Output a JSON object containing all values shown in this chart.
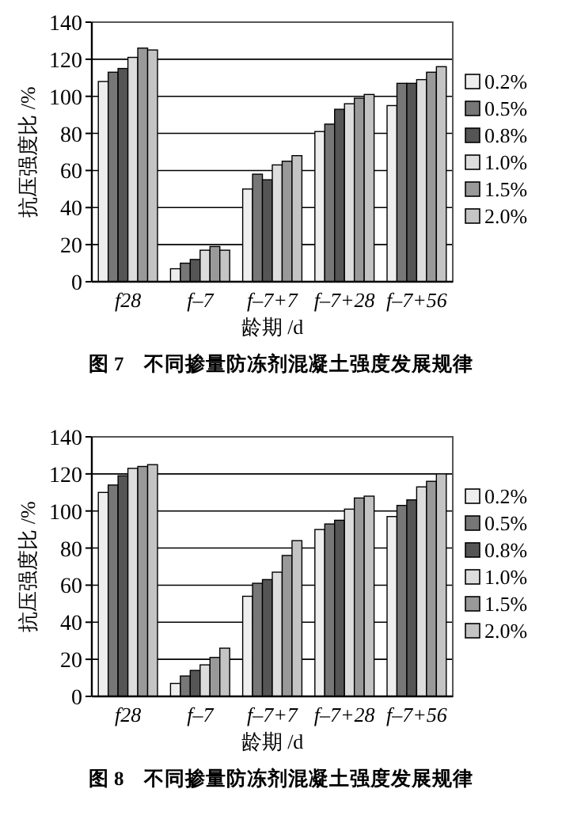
{
  "chart_data": [
    {
      "type": "bar",
      "title": "图 7　不同掺量防冻剂混凝土强度发展规律",
      "xlabel": "龄期 /d",
      "ylabel": "抗压强度比 /%",
      "categories": [
        "f28",
        "f–7",
        "f–7+7",
        "f–7+28",
        "f–7+56"
      ],
      "series": [
        {
          "name": "0.2%",
          "color": "#eeeeee",
          "values": [
            108,
            7,
            50,
            81,
            95
          ]
        },
        {
          "name": "0.5%",
          "color": "#777777",
          "values": [
            113,
            10,
            58,
            85,
            107
          ]
        },
        {
          "name": "0.8%",
          "color": "#555555",
          "values": [
            115,
            12,
            55,
            93,
            107
          ]
        },
        {
          "name": "1.0%",
          "color": "#dddddd",
          "values": [
            121,
            17,
            63,
            96,
            109
          ]
        },
        {
          "name": "1.5%",
          "color": "#999999",
          "values": [
            126,
            19,
            65,
            99,
            113
          ]
        },
        {
          "name": "2.0%",
          "color": "#c4c4c4",
          "values": [
            125,
            17,
            68,
            101,
            116
          ]
        }
      ],
      "ylim": [
        0,
        140
      ],
      "yticks": [
        0,
        20,
        40,
        60,
        80,
        100,
        120,
        140
      ],
      "grid": "y",
      "legend": "right"
    },
    {
      "type": "bar",
      "title": "图 8　不同掺量防冻剂混凝土强度发展规律",
      "xlabel": "龄期 /d",
      "ylabel": "抗压强度比 /%",
      "categories": [
        "f28",
        "f–7",
        "f–7+7",
        "f–7+28",
        "f–7+56"
      ],
      "series": [
        {
          "name": "0.2%",
          "color": "#eeeeee",
          "values": [
            110,
            7,
            54,
            90,
            97
          ]
        },
        {
          "name": "0.5%",
          "color": "#777777",
          "values": [
            114,
            11,
            61,
            93,
            103
          ]
        },
        {
          "name": "0.8%",
          "color": "#555555",
          "values": [
            119,
            14,
            63,
            95,
            106
          ]
        },
        {
          "name": "1.0%",
          "color": "#dddddd",
          "values": [
            123,
            17,
            67,
            101,
            113
          ]
        },
        {
          "name": "1.5%",
          "color": "#999999",
          "values": [
            124,
            21,
            76,
            107,
            116
          ]
        },
        {
          "name": "2.0%",
          "color": "#c4c4c4",
          "values": [
            125,
            26,
            84,
            108,
            120
          ]
        }
      ],
      "ylim": [
        0,
        140
      ],
      "yticks": [
        0,
        20,
        40,
        60,
        80,
        100,
        120,
        140
      ],
      "grid": "y",
      "legend": "right"
    }
  ]
}
